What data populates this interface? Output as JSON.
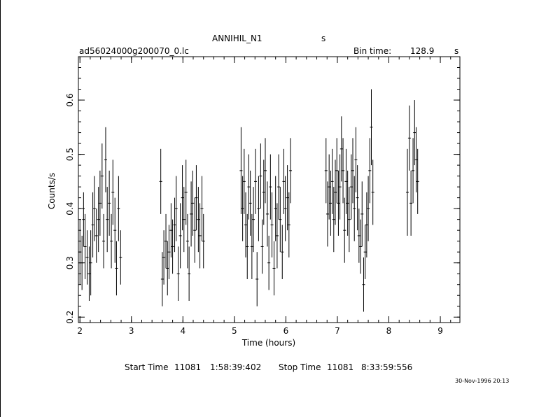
{
  "header": {
    "title_left": "ANNIHIL_N1",
    "title_right": "s",
    "file_name": "ad56024000g200070_0.lc",
    "bin_label": "Bin time:",
    "bin_value": "128.9",
    "bin_unit": "s"
  },
  "footer": {
    "start_label": "Start Time",
    "start_day": "11081",
    "start_time": "1:58:39:402",
    "stop_label": "Stop Time",
    "stop_day": "11081",
    "stop_time": "8:33:59:556",
    "stamp": "30-Nov-1996 20:13"
  },
  "chart_data": {
    "type": "scatter",
    "title": "ANNIHIL_N1",
    "xlabel": "Time (hours)",
    "ylabel": "Counts/s",
    "xlim": [
      1.97,
      9.38
    ],
    "ylim": [
      0.19,
      0.68
    ],
    "xticks": [
      2,
      3,
      4,
      5,
      6,
      7,
      8,
      9
    ],
    "yticks": [
      0.2,
      0.3,
      0.4,
      0.5,
      0.6
    ],
    "xtick_labels": [
      "2",
      "3",
      "4",
      "5",
      "6",
      "7",
      "8",
      "9"
    ],
    "ytick_labels": [
      "0.2",
      "0.3",
      "0.4",
      "0.5",
      "0.6"
    ],
    "grid": false,
    "series": [
      {
        "points": [
          [
            2.0,
            0.32,
            0.06
          ],
          [
            2.04,
            0.3,
            0.05
          ],
          [
            2.07,
            0.38,
            0.05
          ],
          [
            2.1,
            0.33,
            0.06
          ],
          [
            2.14,
            0.31,
            0.05
          ],
          [
            2.18,
            0.28,
            0.05
          ],
          [
            2.21,
            0.3,
            0.06
          ],
          [
            2.25,
            0.37,
            0.06
          ],
          [
            2.28,
            0.4,
            0.06
          ],
          [
            2.32,
            0.35,
            0.05
          ],
          [
            2.36,
            0.38,
            0.06
          ],
          [
            2.39,
            0.41,
            0.06
          ],
          [
            2.43,
            0.46,
            0.06
          ],
          [
            2.46,
            0.34,
            0.05
          ],
          [
            2.5,
            0.49,
            0.06
          ],
          [
            2.53,
            0.38,
            0.06
          ],
          [
            2.57,
            0.41,
            0.06
          ],
          [
            2.61,
            0.34,
            0.05
          ],
          [
            2.64,
            0.43,
            0.06
          ],
          [
            2.68,
            0.36,
            0.06
          ],
          [
            2.71,
            0.29,
            0.05
          ],
          [
            2.75,
            0.4,
            0.06
          ],
          [
            2.79,
            0.31,
            0.05
          ],
          [
            3.57,
            0.45,
            0.06
          ],
          [
            3.6,
            0.27,
            0.05
          ],
          [
            3.63,
            0.31,
            0.05
          ],
          [
            3.67,
            0.34,
            0.05
          ],
          [
            3.7,
            0.29,
            0.05
          ],
          [
            3.73,
            0.32,
            0.05
          ],
          [
            3.77,
            0.36,
            0.05
          ],
          [
            3.8,
            0.33,
            0.05
          ],
          [
            3.84,
            0.37,
            0.05
          ],
          [
            3.87,
            0.4,
            0.06
          ],
          [
            3.91,
            0.28,
            0.05
          ],
          [
            3.95,
            0.35,
            0.06
          ],
          [
            3.99,
            0.42,
            0.06
          ],
          [
            4.02,
            0.38,
            0.06
          ],
          [
            4.06,
            0.43,
            0.06
          ],
          [
            4.09,
            0.34,
            0.05
          ],
          [
            4.12,
            0.28,
            0.05
          ],
          [
            4.16,
            0.39,
            0.06
          ],
          [
            4.19,
            0.41,
            0.06
          ],
          [
            4.23,
            0.36,
            0.06
          ],
          [
            4.26,
            0.42,
            0.06
          ],
          [
            4.3,
            0.38,
            0.06
          ],
          [
            4.33,
            0.35,
            0.06
          ],
          [
            4.37,
            0.4,
            0.06
          ],
          [
            4.4,
            0.34,
            0.05
          ],
          [
            5.13,
            0.47,
            0.08
          ],
          [
            5.16,
            0.4,
            0.06
          ],
          [
            5.19,
            0.45,
            0.06
          ],
          [
            5.22,
            0.37,
            0.06
          ],
          [
            5.25,
            0.33,
            0.06
          ],
          [
            5.28,
            0.44,
            0.06
          ],
          [
            5.31,
            0.41,
            0.06
          ],
          [
            5.34,
            0.33,
            0.06
          ],
          [
            5.37,
            0.38,
            0.06
          ],
          [
            5.41,
            0.45,
            0.06
          ],
          [
            5.44,
            0.27,
            0.05
          ],
          [
            5.47,
            0.4,
            0.06
          ],
          [
            5.51,
            0.46,
            0.06
          ],
          [
            5.54,
            0.33,
            0.05
          ],
          [
            5.57,
            0.43,
            0.06
          ],
          [
            5.6,
            0.47,
            0.06
          ],
          [
            5.64,
            0.39,
            0.06
          ],
          [
            5.67,
            0.3,
            0.05
          ],
          [
            5.7,
            0.44,
            0.06
          ],
          [
            5.73,
            0.37,
            0.06
          ],
          [
            5.77,
            0.29,
            0.05
          ],
          [
            5.8,
            0.4,
            0.06
          ],
          [
            5.83,
            0.35,
            0.06
          ],
          [
            5.86,
            0.44,
            0.06
          ],
          [
            5.89,
            0.38,
            0.06
          ],
          [
            5.93,
            0.32,
            0.05
          ],
          [
            5.96,
            0.45,
            0.06
          ],
          [
            5.99,
            0.4,
            0.06
          ],
          [
            6.03,
            0.42,
            0.06
          ],
          [
            6.06,
            0.37,
            0.06
          ],
          [
            6.09,
            0.47,
            0.06
          ],
          [
            6.78,
            0.47,
            0.06
          ],
          [
            6.81,
            0.39,
            0.06
          ],
          [
            6.84,
            0.44,
            0.06
          ],
          [
            6.87,
            0.41,
            0.06
          ],
          [
            6.9,
            0.45,
            0.06
          ],
          [
            6.93,
            0.38,
            0.06
          ],
          [
            6.96,
            0.43,
            0.06
          ],
          [
            6.99,
            0.47,
            0.06
          ],
          [
            7.02,
            0.41,
            0.06
          ],
          [
            7.05,
            0.44,
            0.06
          ],
          [
            7.08,
            0.51,
            0.06
          ],
          [
            7.11,
            0.47,
            0.06
          ],
          [
            7.14,
            0.36,
            0.06
          ],
          [
            7.17,
            0.45,
            0.06
          ],
          [
            7.2,
            0.41,
            0.06
          ],
          [
            7.23,
            0.38,
            0.06
          ],
          [
            7.27,
            0.44,
            0.06
          ],
          [
            7.3,
            0.47,
            0.06
          ],
          [
            7.33,
            0.4,
            0.06
          ],
          [
            7.36,
            0.49,
            0.06
          ],
          [
            7.39,
            0.42,
            0.06
          ],
          [
            7.42,
            0.35,
            0.05
          ],
          [
            7.45,
            0.33,
            0.05
          ],
          [
            7.48,
            0.39,
            0.06
          ],
          [
            7.51,
            0.26,
            0.05
          ],
          [
            7.54,
            0.32,
            0.05
          ],
          [
            7.57,
            0.37,
            0.06
          ],
          [
            7.6,
            0.4,
            0.06
          ],
          [
            7.63,
            0.47,
            0.06
          ],
          [
            7.66,
            0.55,
            0.07
          ],
          [
            7.69,
            0.43,
            0.06
          ],
          [
            8.36,
            0.43,
            0.08
          ],
          [
            8.4,
            0.53,
            0.06
          ],
          [
            8.43,
            0.41,
            0.06
          ],
          [
            8.47,
            0.47,
            0.06
          ],
          [
            8.5,
            0.54,
            0.06
          ],
          [
            8.53,
            0.49,
            0.06
          ],
          [
            8.56,
            0.45,
            0.06
          ]
        ]
      }
    ]
  }
}
